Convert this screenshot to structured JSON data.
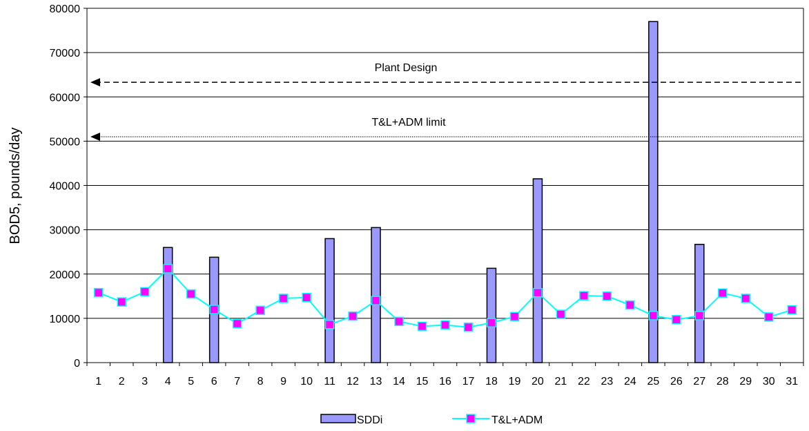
{
  "chart_data": {
    "type": "bar",
    "title": "",
    "xlabel": "",
    "ylabel": "BOD5, pounds/day",
    "ylim": [
      0,
      80000
    ],
    "yticks": [
      0,
      10000,
      20000,
      30000,
      40000,
      50000,
      60000,
      70000,
      80000
    ],
    "grid": true,
    "legend_position": "bottom",
    "categories": [
      "1",
      "2",
      "3",
      "4",
      "5",
      "6",
      "7",
      "8",
      "9",
      "10",
      "11",
      "12",
      "13",
      "14",
      "15",
      "16",
      "17",
      "18",
      "19",
      "20",
      "21",
      "22",
      "23",
      "24",
      "25",
      "26",
      "27",
      "28",
      "29",
      "30",
      "31"
    ],
    "series": [
      {
        "name": "SDDi",
        "type": "bar",
        "color": "#9999ff",
        "values": [
          null,
          null,
          null,
          26000,
          null,
          23800,
          null,
          null,
          null,
          null,
          28000,
          null,
          30500,
          null,
          null,
          null,
          null,
          21300,
          null,
          41500,
          null,
          null,
          null,
          null,
          77000,
          null,
          26700,
          null,
          null,
          null,
          null
        ]
      },
      {
        "name": "T&L+ADM",
        "type": "line",
        "color": "#00ffff",
        "marker_color": "#ff00ff",
        "values": [
          15800,
          13700,
          16000,
          21200,
          15500,
          12000,
          8800,
          11800,
          14500,
          14700,
          8600,
          10500,
          14000,
          9300,
          8200,
          8500,
          8000,
          9000,
          10400,
          15800,
          10900,
          15100,
          15000,
          13000,
          10600,
          9700,
          10600,
          15700,
          14500,
          10300,
          11900
        ]
      }
    ],
    "annotations": [
      {
        "label": "Plant Design",
        "y": 63300,
        "style": "dashed"
      },
      {
        "label": "T&L+ADM limit",
        "y": 51000,
        "style": "dotted"
      }
    ]
  }
}
